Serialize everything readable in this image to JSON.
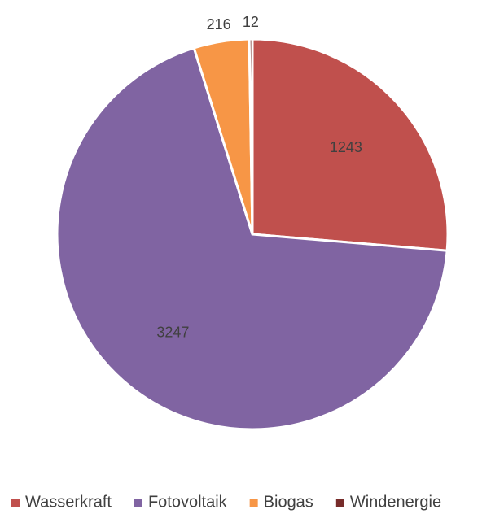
{
  "chart_data": {
    "type": "pie",
    "categories": [
      "Wasserkraft",
      "Fotovoltaik",
      "Biogas",
      "Windenergie"
    ],
    "values": [
      1243,
      3247,
      216,
      12
    ],
    "colors": [
      "#c0504d",
      "#8064a2",
      "#f79646",
      "#772c2a"
    ],
    "start_angle": 0,
    "direction": "clockwise",
    "legend": "bottom"
  }
}
